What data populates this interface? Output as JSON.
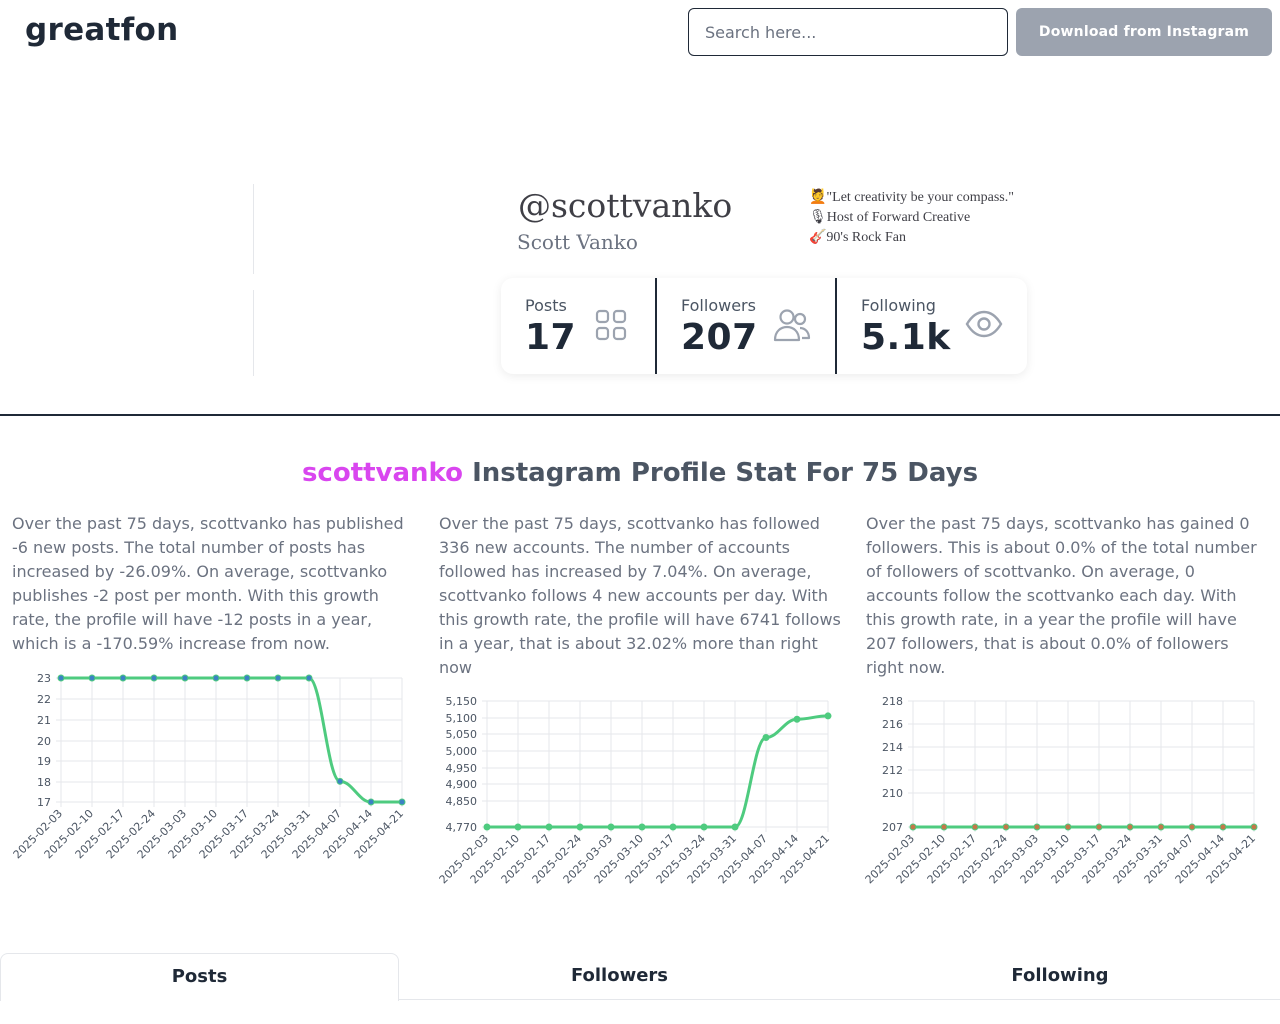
{
  "header": {
    "logo": "greatfon",
    "search_placeholder": "Search here...",
    "download_label": "Download from Instagram"
  },
  "profile": {
    "handle": "@scottvanko",
    "full_name": "Scott Vanko",
    "bio": [
      "💆\"Let creativity be your compass.\"",
      "🎙Host of Forward Creative",
      "🎸90's Rock Fan"
    ],
    "stats": [
      {
        "label": "Posts",
        "value": "17",
        "icon": "grid-icon"
      },
      {
        "label": "Followers",
        "value": "207",
        "icon": "users-icon"
      },
      {
        "label": "Following",
        "value": "5.1k",
        "icon": "eye-icon"
      }
    ]
  },
  "section": {
    "username": "scottvanko",
    "title_rest": " Instagram Profile Stat For 75 Days"
  },
  "descriptions": [
    "Over the past 75 days, scottvanko has published -6 new posts. The total number of posts has increased by -26.09%. On average, scottvanko publishes -2 post per month. With this growth rate, the profile will have -12 posts in a year, which is a -170.59% increase from now.",
    "Over the past 75 days, scottvanko has followed 336 new accounts. The number of accounts followed has increased by 7.04%. On average, scottvanko follows 4 new accounts per day. With this growth rate, the profile will have 6741 follows in a year, that is about 32.02% more than right now",
    "Over the past 75 days, scottvanko has gained 0 followers. This is about 0.0% of the total number of followers of scottvanko. On average, 0 accounts follow the scottvanko each day. With this growth rate, in a year the profile will have 207 followers, that is about 0.0% of followers right now."
  ],
  "colors": {
    "accent": "#d946ef",
    "line": "#4ecb7f",
    "button": "#9ca3af"
  },
  "chart_data": [
    {
      "type": "line",
      "categories": [
        "2025-02-03",
        "2025-02-10",
        "2025-02-17",
        "2025-02-24",
        "2025-03-03",
        "2025-03-10",
        "2025-03-17",
        "2025-03-24",
        "2025-03-31",
        "2025-04-07",
        "2025-04-14",
        "2025-04-21"
      ],
      "values": [
        23,
        23,
        23,
        23,
        23,
        23,
        23,
        23,
        23,
        18,
        17,
        17
      ],
      "yticks": [
        "23",
        "22",
        "21",
        "20",
        "19",
        "18",
        "17"
      ],
      "ylim": [
        17,
        23
      ],
      "point_color": "#3b82c4",
      "grid": true
    },
    {
      "type": "line",
      "categories": [
        "2025-02-03",
        "2025-02-10",
        "2025-02-17",
        "2025-02-24",
        "2025-03-03",
        "2025-03-10",
        "2025-03-17",
        "2025-03-24",
        "2025-03-31",
        "2025-04-07",
        "2025-04-14",
        "2025-04-21"
      ],
      "values": [
        4770,
        4770,
        4770,
        4770,
        4770,
        4770,
        4770,
        4770,
        4770,
        5040,
        5095,
        5105
      ],
      "yticks": [
        "5,150",
        "5,100",
        "5,050",
        "5,000",
        "4,950",
        "4,900",
        "4,850",
        "4,770"
      ],
      "ylim": [
        4770,
        5150
      ],
      "point_color": "#4ecb7f",
      "grid": true
    },
    {
      "type": "line",
      "categories": [
        "2025-02-03",
        "2025-02-10",
        "2025-02-17",
        "2025-02-24",
        "2025-03-03",
        "2025-03-10",
        "2025-03-17",
        "2025-03-24",
        "2025-03-31",
        "2025-04-07",
        "2025-04-14",
        "2025-04-21"
      ],
      "values": [
        207,
        207,
        207,
        207,
        207,
        207,
        207,
        207,
        207,
        207,
        207,
        207
      ],
      "yticks": [
        "218",
        "216",
        "214",
        "212",
        "210",
        "207"
      ],
      "ylim": [
        207,
        218
      ],
      "point_color": "#c2784a",
      "grid": true
    }
  ],
  "tabs": [
    "Posts",
    "Followers",
    "Following"
  ]
}
